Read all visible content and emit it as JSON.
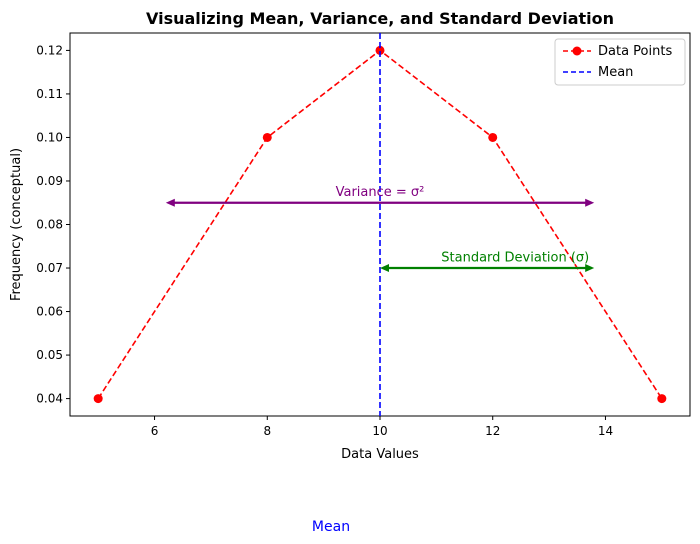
{
  "chart_data": {
    "type": "line",
    "title": "Visualizing Mean, Variance, and Standard Deviation",
    "xlabel": "Data Values",
    "ylabel": "Frequency (conceptual)",
    "xlim": [
      4.5,
      15.5
    ],
    "ylim": [
      0.036,
      0.124
    ],
    "xticks": [
      6,
      8,
      10,
      12,
      14
    ],
    "yticks": [
      0.04,
      0.05,
      0.06,
      0.07,
      0.08,
      0.09,
      0.1,
      0.11,
      0.12
    ],
    "ytick_labels": [
      "0.04",
      "0.05",
      "0.06",
      "0.07",
      "0.08",
      "0.09",
      "0.10",
      "0.11",
      "0.12"
    ],
    "grid": false,
    "series": [
      {
        "name": "Data Points",
        "style": "dashed-with-markers",
        "color": "#ff0000",
        "x": [
          5,
          8,
          10,
          12,
          15
        ],
        "y": [
          0.04,
          0.1,
          0.12,
          0.1,
          0.04
        ]
      }
    ],
    "mean_line": {
      "name": "Mean",
      "x": 10,
      "color": "#0000ff",
      "style": "dashed"
    },
    "annotations": [
      {
        "text": "Variance = σ²",
        "color": "#800080",
        "arrow_from": [
          6.2,
          0.085
        ],
        "arrow_to": [
          13.8,
          0.085
        ],
        "text_x": 10.0,
        "text_y": 0.0865
      },
      {
        "text": "Standard Deviation (σ)",
        "color": "#008000",
        "arrow_from": [
          10.0,
          0.07
        ],
        "arrow_to": [
          13.8,
          0.07
        ],
        "text_x": 12.4,
        "text_y": 0.0715
      }
    ],
    "legend": {
      "placement": "top-right",
      "entries": [
        "Data Points",
        "Mean"
      ]
    },
    "bottom_label": {
      "text": "Mean",
      "color": "#0000ff"
    }
  }
}
